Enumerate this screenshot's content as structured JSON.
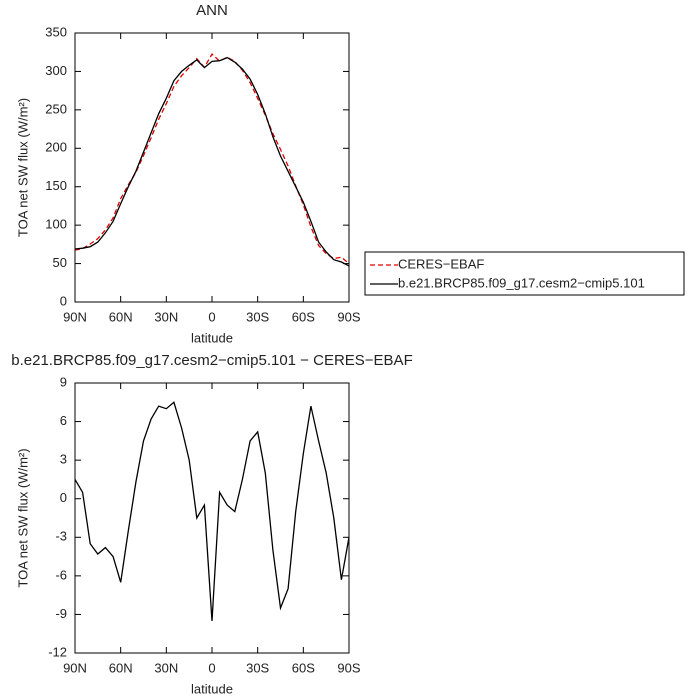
{
  "chart_data": [
    {
      "type": "line",
      "title": "ANN",
      "xlabel": "latitude",
      "ylabel": "TOA net SW flux (W/m²)",
      "x": [
        90,
        85,
        80,
        75,
        70,
        65,
        60,
        55,
        50,
        45,
        40,
        35,
        30,
        25,
        20,
        15,
        10,
        5,
        0,
        -5,
        -10,
        -15,
        -20,
        -25,
        -30,
        -35,
        -40,
        -45,
        -50,
        -55,
        -60,
        -65,
        -70,
        -75,
        -80,
        -85,
        -90
      ],
      "xlim": [
        90,
        -90
      ],
      "xticks": [
        {
          "value": 90,
          "label": "90N"
        },
        {
          "value": 60,
          "label": "60N"
        },
        {
          "value": 30,
          "label": "30N"
        },
        0,
        {
          "value": -30,
          "label": "30S"
        },
        {
          "value": -60,
          "label": "60S"
        },
        {
          "value": -90,
          "label": "90S"
        }
      ],
      "ylim": [
        0,
        350
      ],
      "yticks": [
        0,
        50,
        100,
        150,
        200,
        250,
        300,
        350
      ],
      "legend": "right",
      "series": [
        {
          "name": "CERES−EBAF",
          "color": "#e00000",
          "style": "dashed",
          "values": [
            67.5,
            69.5,
            75.5,
            82.3,
            93.8,
            109.5,
            134.5,
            152.5,
            168.7,
            190.5,
            213.8,
            237.8,
            258,
            280.5,
            294.5,
            305,
            316.5,
            305.5,
            322.5,
            313.5,
            318.5,
            313,
            301.5,
            285.5,
            264.8,
            243,
            219,
            198.5,
            177,
            151,
            126.5,
            97.8,
            73.5,
            63,
            56.5,
            58.3,
            50
          ]
        },
        {
          "name": "b.e21.BRCP85.f09_g17.cesm2−cmip5.101",
          "color": "#000000",
          "style": "solid",
          "values": [
            69,
            70,
            72,
            78,
            90,
            105,
            128,
            150,
            170,
            195,
            220,
            245,
            265,
            288,
            300,
            308,
            315,
            305,
            313,
            314,
            318,
            312,
            303,
            290,
            270,
            245,
            215,
            190,
            170,
            150,
            130,
            105,
            78,
            65,
            55,
            52,
            47
          ]
        }
      ]
    },
    {
      "type": "line",
      "title": "b.e21.BRCP85.f09_g17.cesm2−cmip5.101 − CERES−EBAF",
      "xlabel": "latitude",
      "ylabel": "TOA net SW flux (W/m²)",
      "x": [
        90,
        85,
        80,
        75,
        70,
        65,
        60,
        55,
        50,
        45,
        40,
        35,
        30,
        25,
        20,
        15,
        10,
        5,
        0,
        -5,
        -10,
        -15,
        -20,
        -25,
        -30,
        -35,
        -40,
        -45,
        -50,
        -55,
        -60,
        -65,
        -70,
        -75,
        -80,
        -85,
        -90
      ],
      "xlim": [
        90,
        -90
      ],
      "xticks": [
        {
          "value": 90,
          "label": "90N"
        },
        {
          "value": 60,
          "label": "60N"
        },
        {
          "value": 30,
          "label": "30N"
        },
        0,
        {
          "value": -30,
          "label": "30S"
        },
        {
          "value": -60,
          "label": "60S"
        },
        {
          "value": -90,
          "label": "90S"
        }
      ],
      "ylim": [
        -12,
        9
      ],
      "yticks": [
        -12,
        -9,
        -6,
        -3,
        0,
        3,
        6,
        9
      ],
      "series": [
        {
          "color": "#000000",
          "style": "solid",
          "values": [
            1.5,
            0.5,
            -3.5,
            -4.3,
            -3.8,
            -4.5,
            -6.5,
            -2.5,
            1.3,
            4.5,
            6.2,
            7.2,
            7,
            7.5,
            5.5,
            3,
            -1.5,
            -0.5,
            -9.5,
            0.5,
            -0.5,
            -1,
            1.5,
            4.5,
            5.2,
            2,
            -4,
            -8.5,
            -7,
            -1,
            3.5,
            7.2,
            4.5,
            2,
            -1.5,
            -6.3,
            -3
          ]
        }
      ]
    }
  ]
}
